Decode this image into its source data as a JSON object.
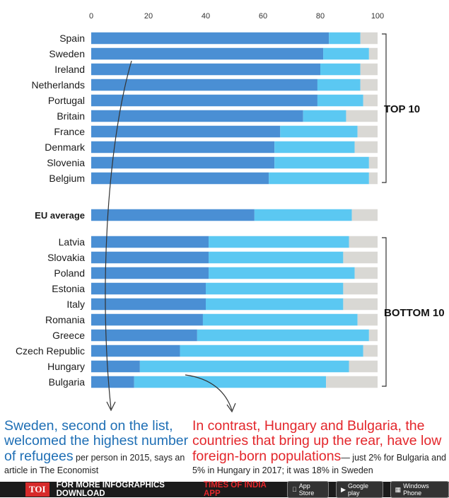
{
  "chart_data": {
    "type": "bar",
    "stacked": true,
    "xlim": [
      0,
      100
    ],
    "xticks": [
      "0",
      "20",
      "40",
      "60",
      "80",
      "100"
    ],
    "colors": [
      "#4a8fd4",
      "#5bc8f2",
      "#d9d8d4"
    ],
    "groups": [
      {
        "label": "TOP 10",
        "rows": [
          {
            "name": "Spain",
            "values": [
              83,
              11,
              6
            ]
          },
          {
            "name": "Sweden",
            "values": [
              81,
              16,
              3
            ]
          },
          {
            "name": "Ireland",
            "values": [
              80,
              14,
              6
            ]
          },
          {
            "name": "Netherlands",
            "values": [
              79,
              15,
              6
            ]
          },
          {
            "name": "Portugal",
            "values": [
              79,
              16,
              5
            ]
          },
          {
            "name": "Britain",
            "values": [
              74,
              15,
              11
            ]
          },
          {
            "name": "France",
            "values": [
              66,
              27,
              7
            ]
          },
          {
            "name": "Denmark",
            "values": [
              64,
              28,
              8
            ]
          },
          {
            "name": "Slovenia",
            "values": [
              64,
              33,
              3
            ]
          },
          {
            "name": "Belgium",
            "values": [
              62,
              35,
              3
            ]
          }
        ]
      },
      {
        "label": "",
        "rows": [
          {
            "name": "EU average",
            "values": [
              57,
              34,
              9
            ],
            "bold": true
          }
        ]
      },
      {
        "label": "BOTTOM 10",
        "rows": [
          {
            "name": "Latvia",
            "values": [
              41,
              49,
              10
            ]
          },
          {
            "name": "Slovakia",
            "values": [
              41,
              47,
              12
            ]
          },
          {
            "name": "Poland",
            "values": [
              41,
              51,
              8
            ]
          },
          {
            "name": "Estonia",
            "values": [
              40,
              48,
              12
            ]
          },
          {
            "name": "Italy",
            "values": [
              40,
              48,
              12
            ]
          },
          {
            "name": "Romania",
            "values": [
              39,
              54,
              7
            ]
          },
          {
            "name": "Greece",
            "values": [
              37,
              60,
              3
            ]
          },
          {
            "name": "Czech Republic",
            "values": [
              31,
              64,
              5
            ]
          },
          {
            "name": "Hungary",
            "values": [
              17,
              73,
              10
            ]
          },
          {
            "name": "Bulgaria",
            "values": [
              15,
              67,
              18
            ]
          }
        ]
      }
    ]
  },
  "annotations": {
    "left_big": "Sweden, second on the list, welcomed the highest number of refugees",
    "left_small": " per person in 2015, says an article in The Economist",
    "right_big": "In contrast, Hungary and Bulgaria, the countries that bring up the rear, have low foreign-born populations",
    "right_small": "— just 2% for Bulgaria and 5% in Hungary in 2017; it was 18% in Sweden"
  },
  "footer": {
    "logo": "TOI",
    "text": "FOR MORE  INFOGRAPHICS DOWNLOAD",
    "app": "TIMES OF INDIA APP",
    "badges": [
      "App Store",
      "Google play",
      "Windows Phone"
    ]
  }
}
